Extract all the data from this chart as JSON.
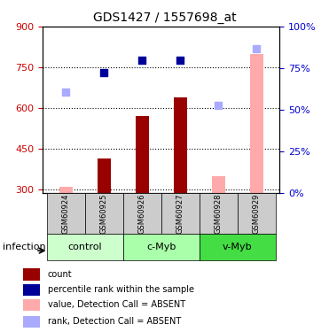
{
  "title": "GDS1427 / 1557698_at",
  "samples": [
    "GSM60924",
    "GSM60925",
    "GSM60926",
    "GSM60927",
    "GSM60928",
    "GSM60929"
  ],
  "groups": [
    {
      "label": "control",
      "samples": [
        0,
        1
      ],
      "color": "#ccffcc"
    },
    {
      "label": "c-Myb",
      "samples": [
        2,
        3
      ],
      "color": "#aaffaa"
    },
    {
      "label": "v-Myb",
      "samples": [
        4,
        5
      ],
      "color": "#44dd44"
    }
  ],
  "ylim_left": [
    290,
    900
  ],
  "ylim_right": [
    0,
    100
  ],
  "yticks_left": [
    300,
    450,
    600,
    750,
    900
  ],
  "yticks_right": [
    0,
    25,
    50,
    75,
    100
  ],
  "count_bars": {
    "absent": [
      true,
      false,
      false,
      false,
      true,
      true
    ],
    "values": [
      310,
      415,
      570,
      640,
      350,
      800
    ]
  },
  "rank_dots": {
    "absent": [
      true,
      false,
      false,
      false,
      true,
      true
    ],
    "values": [
      660,
      730,
      775,
      775,
      610,
      820
    ]
  },
  "bar_color_present": "#990000",
  "bar_color_absent": "#ffaaaa",
  "dot_color_present": "#000099",
  "dot_color_absent": "#aaaaff",
  "bar_width": 0.35,
  "legend_items": [
    {
      "color": "#990000",
      "label": "count"
    },
    {
      "color": "#000099",
      "label": "percentile rank within the sample"
    },
    {
      "color": "#ffaaaa",
      "label": "value, Detection Call = ABSENT"
    },
    {
      "color": "#aaaaff",
      "label": "rank, Detection Call = ABSENT"
    }
  ],
  "infection_label": "infection",
  "grid_linestyle": "dotted",
  "background_color": "#ffffff",
  "left_axis_color": "#cc0000",
  "right_axis_color": "#0000cc"
}
